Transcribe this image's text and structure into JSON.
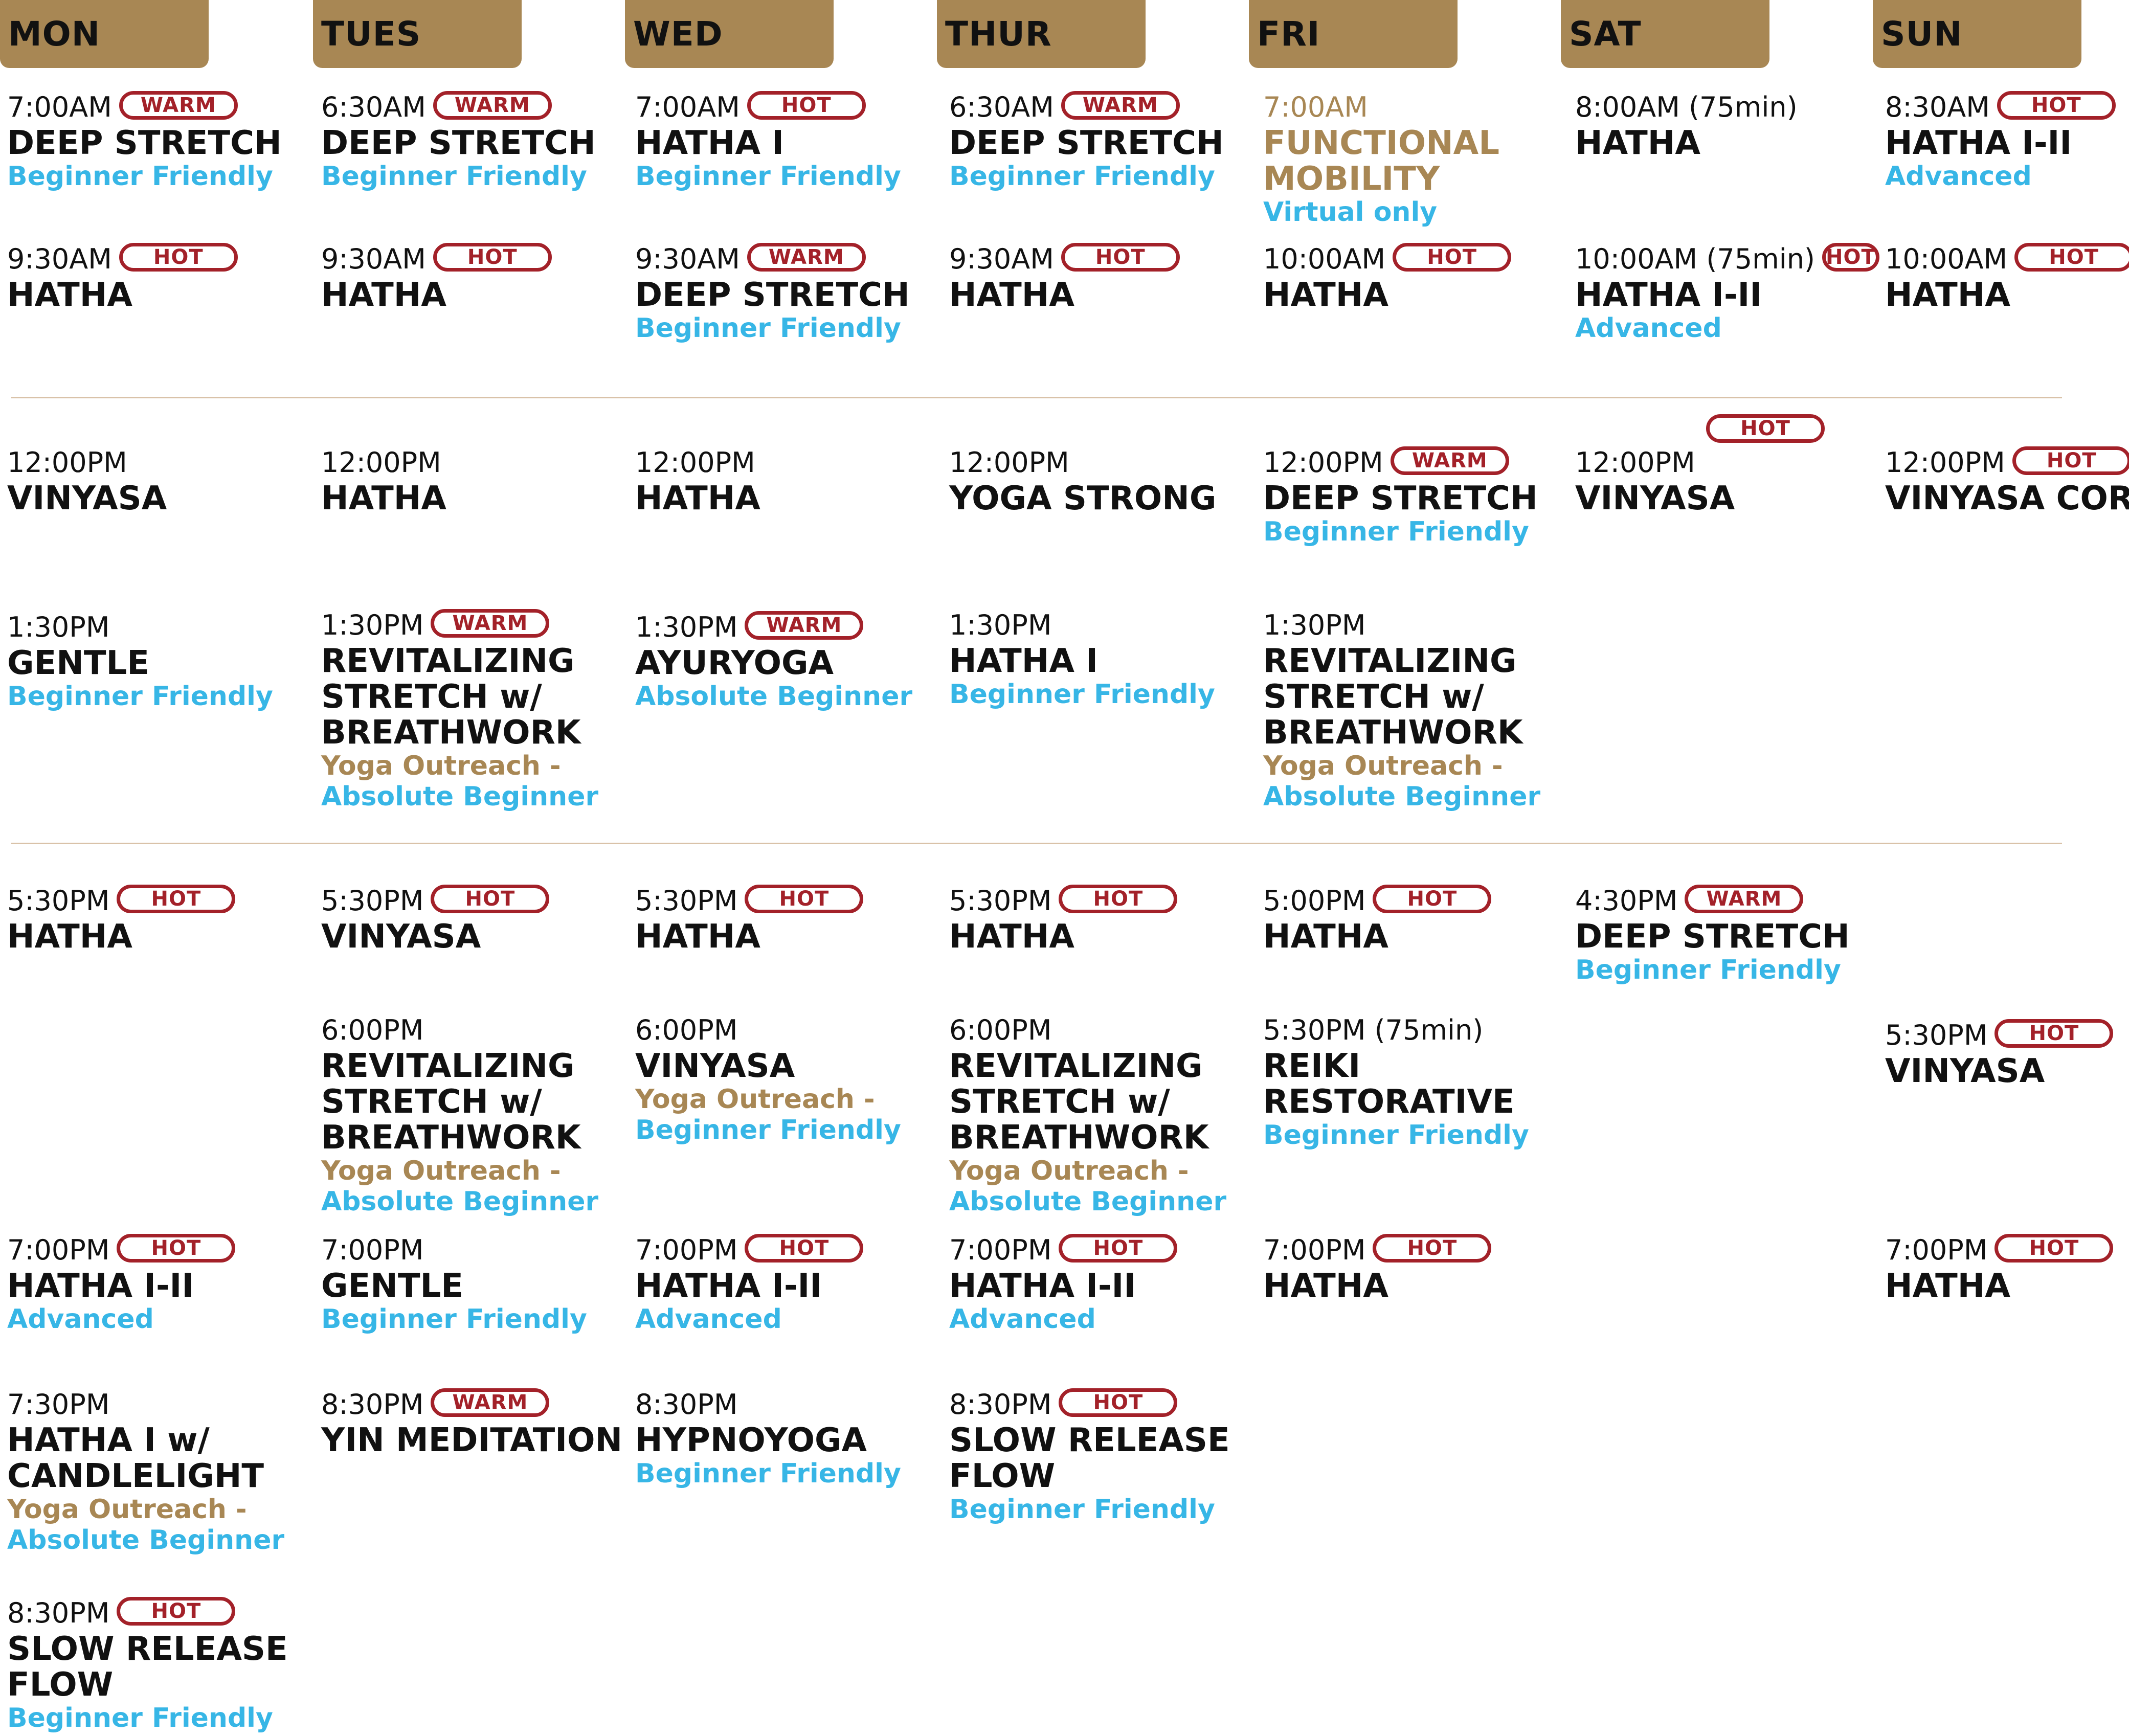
{
  "days": [
    "MON",
    "TUES",
    "WED",
    "THUR",
    "FRI",
    "SAT",
    "SUN"
  ],
  "badges": {
    "hot": "HOT",
    "warm": "WARM"
  },
  "colors": {
    "header": "#a88754",
    "badge": "#a32129",
    "level": "#37b6e6",
    "outreach": "#a88754",
    "divider": "#d9c2a8"
  },
  "classes": [
    {
      "day": "MON",
      "time": "7:00AM",
      "badge": "WARM",
      "name": [
        "DEEP STRETCH"
      ],
      "tags": [
        "Beginner Friendly"
      ]
    },
    {
      "day": "MON",
      "time": "9:30AM",
      "badge": "HOT",
      "name": [
        "HATHA"
      ],
      "tags": []
    },
    {
      "day": "MON",
      "time": "12:00PM",
      "badge": "",
      "name": [
        "VINYASA"
      ],
      "tags": []
    },
    {
      "day": "MON",
      "time": "1:30PM",
      "badge": "",
      "name": [
        "GENTLE"
      ],
      "tags": [
        "Beginner Friendly"
      ]
    },
    {
      "day": "MON",
      "time": "5:30PM",
      "badge": "HOT",
      "name": [
        "HATHA"
      ],
      "tags": []
    },
    {
      "day": "MON",
      "time": "7:00PM",
      "badge": "HOT",
      "name": [
        "HATHA I-II"
      ],
      "tags": [
        "Advanced"
      ]
    },
    {
      "day": "MON",
      "time": "7:30PM",
      "badge": "",
      "name": [
        "HATHA I w/",
        "CANDLELIGHT"
      ],
      "tags": [
        "Yoga Outreach -",
        "Absolute Beginner"
      ]
    },
    {
      "day": "MON",
      "time": "8:30PM",
      "badge": "HOT",
      "name": [
        "SLOW RELEASE",
        "FLOW"
      ],
      "tags": [
        "Beginner Friendly"
      ]
    },
    {
      "day": "TUES",
      "time": "6:30AM",
      "badge": "WARM",
      "name": [
        "DEEP STRETCH"
      ],
      "tags": [
        "Beginner Friendly"
      ]
    },
    {
      "day": "TUES",
      "time": "9:30AM",
      "badge": "HOT",
      "name": [
        "HATHA"
      ],
      "tags": []
    },
    {
      "day": "TUES",
      "time": "12:00PM",
      "badge": "",
      "name": [
        "HATHA"
      ],
      "tags": []
    },
    {
      "day": "TUES",
      "time": "1:30PM",
      "badge": "WARM",
      "name": [
        "REVITALIZING",
        "STRETCH w/",
        "BREATHWORK"
      ],
      "tags": [
        "Yoga Outreach -",
        "Absolute Beginner"
      ]
    },
    {
      "day": "TUES",
      "time": "5:30PM",
      "badge": "HOT",
      "name": [
        "VINYASA"
      ],
      "tags": []
    },
    {
      "day": "TUES",
      "time": "6:00PM",
      "badge": "",
      "name": [
        "REVITALIZING",
        "STRETCH w/",
        "BREATHWORK"
      ],
      "tags": [
        "Yoga Outreach -",
        "Absolute Beginner"
      ]
    },
    {
      "day": "TUES",
      "time": "7:00PM",
      "badge": "",
      "name": [
        "GENTLE"
      ],
      "tags": [
        "Beginner Friendly"
      ]
    },
    {
      "day": "TUES",
      "time": "8:30PM",
      "badge": "WARM",
      "name": [
        "YIN MEDITATION"
      ],
      "tags": []
    },
    {
      "day": "WED",
      "time": "7:00AM",
      "badge": "HOT",
      "name": [
        "HATHA I"
      ],
      "tags": [
        "Beginner Friendly"
      ]
    },
    {
      "day": "WED",
      "time": "9:30AM",
      "badge": "WARM",
      "name": [
        "DEEP STRETCH"
      ],
      "tags": [
        "Beginner Friendly"
      ]
    },
    {
      "day": "WED",
      "time": "12:00PM",
      "badge": "",
      "name": [
        "HATHA"
      ],
      "tags": []
    },
    {
      "day": "WED",
      "time": "1:30PM",
      "badge": "WARM",
      "name": [
        "AYURYOGA"
      ],
      "tags": [
        "Absolute Beginner"
      ]
    },
    {
      "day": "WED",
      "time": "5:30PM",
      "badge": "HOT",
      "name": [
        "HATHA"
      ],
      "tags": []
    },
    {
      "day": "WED",
      "time": "6:00PM",
      "badge": "",
      "name": [
        "VINYASA"
      ],
      "tags": [
        "Yoga Outreach -",
        "Beginner Friendly"
      ]
    },
    {
      "day": "WED",
      "time": "7:00PM",
      "badge": "HOT",
      "name": [
        "HATHA I-II"
      ],
      "tags": [
        "Advanced"
      ]
    },
    {
      "day": "WED",
      "time": "8:30PM",
      "badge": "",
      "name": [
        "HYPNOYOGA"
      ],
      "tags": [
        "Beginner Friendly"
      ]
    },
    {
      "day": "THUR",
      "time": "6:30AM",
      "badge": "WARM",
      "name": [
        "DEEP STRETCH"
      ],
      "tags": [
        "Beginner Friendly"
      ]
    },
    {
      "day": "THUR",
      "time": "9:30AM",
      "badge": "HOT",
      "name": [
        "HATHA"
      ],
      "tags": []
    },
    {
      "day": "THUR",
      "time": "12:00PM",
      "badge": "",
      "name": [
        "YOGA STRONG"
      ],
      "tags": []
    },
    {
      "day": "THUR",
      "time": "1:30PM",
      "badge": "",
      "name": [
        "HATHA I"
      ],
      "tags": [
        "Beginner Friendly"
      ]
    },
    {
      "day": "THUR",
      "time": "5:30PM",
      "badge": "HOT",
      "name": [
        "HATHA"
      ],
      "tags": []
    },
    {
      "day": "THUR",
      "time": "6:00PM",
      "badge": "",
      "name": [
        "REVITALIZING",
        "STRETCH w/",
        "BREATHWORK"
      ],
      "tags": [
        "Yoga Outreach -",
        "Absolute Beginner"
      ]
    },
    {
      "day": "THUR",
      "time": "7:00PM",
      "badge": "HOT",
      "name": [
        "HATHA I-II"
      ],
      "tags": [
        "Advanced"
      ]
    },
    {
      "day": "THUR",
      "time": "8:30PM",
      "badge": "HOT",
      "name": [
        "SLOW RELEASE",
        "FLOW"
      ],
      "tags": [
        "Beginner Friendly"
      ]
    },
    {
      "day": "FRI",
      "time": "7:00AM",
      "badge": "",
      "name": [
        "FUNCTIONAL",
        "MOBILITY"
      ],
      "tags": [
        "Virtual only"
      ]
    },
    {
      "day": "FRI",
      "time": "10:00AM",
      "badge": "HOT",
      "name": [
        "HATHA"
      ],
      "tags": []
    },
    {
      "day": "FRI",
      "time": "12:00PM",
      "badge": "WARM",
      "name": [
        "DEEP STRETCH"
      ],
      "tags": [
        "Beginner Friendly"
      ]
    },
    {
      "day": "FRI",
      "time": "1:30PM",
      "badge": "",
      "name": [
        "REVITALIZING",
        "STRETCH w/",
        "BREATHWORK"
      ],
      "tags": [
        "Yoga Outreach -",
        "Absolute Beginner"
      ]
    },
    {
      "day": "FRI",
      "time": "5:00PM",
      "badge": "HOT",
      "name": [
        "HATHA"
      ],
      "tags": []
    },
    {
      "day": "FRI",
      "time": "5:30PM (75min)",
      "badge": "",
      "name": [
        "REIKI",
        "RESTORATIVE"
      ],
      "tags": [
        "Beginner Friendly"
      ]
    },
    {
      "day": "FRI",
      "time": "7:00PM",
      "badge": "HOT",
      "name": [
        "HATHA"
      ],
      "tags": []
    },
    {
      "day": "SAT",
      "time": "8:00AM (75min)",
      "badge": "",
      "name": [
        "HATHA"
      ],
      "tags": []
    },
    {
      "day": "SAT",
      "time": "10:00AM (75min)",
      "badge": "HOT",
      "name": [
        "HATHA I-II"
      ],
      "tags": [
        "Advanced"
      ]
    },
    {
      "day": "SAT",
      "time": "12:00PM",
      "badge": "HOT",
      "name": [
        "VINYASA"
      ],
      "tags": []
    },
    {
      "day": "SAT",
      "time": "4:30PM",
      "badge": "WARM",
      "name": [
        "DEEP STRETCH"
      ],
      "tags": [
        "Beginner Friendly"
      ]
    },
    {
      "day": "SUN",
      "time": "8:30AM",
      "badge": "HOT",
      "name": [
        "HATHA I-II"
      ],
      "tags": [
        "Advanced"
      ]
    },
    {
      "day": "SUN",
      "time": "10:00AM",
      "badge": "HOT",
      "name": [
        "HATHA"
      ],
      "tags": []
    },
    {
      "day": "SUN",
      "time": "12:00PM",
      "badge": "HOT",
      "name": [
        "VINYASA CORE"
      ],
      "tags": []
    },
    {
      "day": "SUN",
      "time": "5:30PM",
      "badge": "HOT",
      "name": [
        "VINYASA"
      ],
      "tags": []
    },
    {
      "day": "SUN",
      "time": "7:00PM",
      "badge": "HOT",
      "name": [
        "HATHA"
      ],
      "tags": []
    }
  ]
}
